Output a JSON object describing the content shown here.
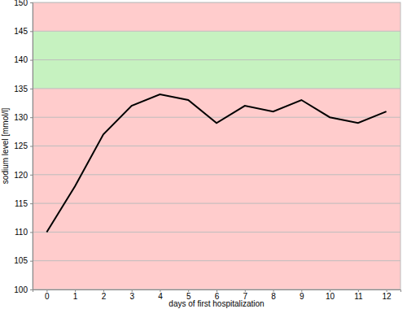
{
  "chart_data": {
    "type": "line",
    "x_label": "days of first hospitalization",
    "y_label": "sodium level [mmol/l]",
    "x": [
      0,
      1,
      2,
      3,
      4,
      5,
      6,
      7,
      8,
      9,
      10,
      11,
      12
    ],
    "values": [
      110,
      118,
      127,
      132,
      134,
      133,
      129,
      132,
      131,
      133,
      130,
      129,
      131
    ],
    "color": "#000000",
    "normal_range": [
      135,
      145
    ],
    "xlim": [
      -0.5,
      12.5
    ],
    "xticks": [
      0,
      1,
      2,
      3,
      4,
      5,
      6,
      7,
      8,
      9,
      10,
      11,
      12
    ],
    "ylim": [
      100,
      150
    ],
    "yticks": [
      100,
      105,
      110,
      115,
      120,
      125,
      130,
      135,
      140,
      145,
      150
    ],
    "grid": true
  }
}
